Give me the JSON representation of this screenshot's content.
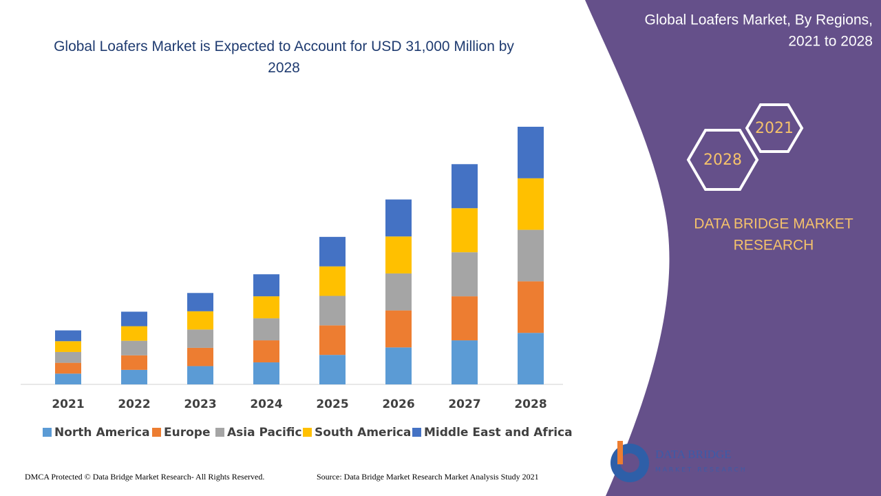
{
  "chart_data": {
    "type": "stacked-bar",
    "title": "Global Loafers Market is Expected to Account for USD 31,000 Million by 2028",
    "categories": [
      "2021",
      "2022",
      "2023",
      "2024",
      "2025",
      "2026",
      "2027",
      "2028"
    ],
    "series": [
      {
        "name": "North America",
        "color": "#5b9bd5",
        "values": [
          1300,
          1750,
          2200,
          2650,
          3550,
          4450,
          5300,
          6200
        ]
      },
      {
        "name": "Europe",
        "color": "#ed7d31",
        "values": [
          1300,
          1750,
          2200,
          2650,
          3550,
          4450,
          5300,
          6200
        ]
      },
      {
        "name": "Asia Pacific",
        "color": "#a5a5a5",
        "values": [
          1300,
          1750,
          2200,
          2650,
          3550,
          4450,
          5300,
          6200
        ]
      },
      {
        "name": "South America",
        "color": "#ffc000",
        "values": [
          1300,
          1750,
          2200,
          2650,
          3550,
          4450,
          5300,
          6200
        ]
      },
      {
        "name": "Middle East and Africa",
        "color": "#4472c4",
        "values": [
          1300,
          1750,
          2200,
          2650,
          3550,
          4450,
          5300,
          6200
        ]
      }
    ]
  },
  "panel": {
    "title_lines": [
      "Global Loafers Market, By Regions,",
      "2021 to 2028"
    ],
    "hex": [
      "2021",
      "2028"
    ],
    "brand_lines": [
      "DATA BRIDGE MARKET",
      "RESEARCH"
    ]
  },
  "logo": {
    "name": "DATA BRIDGE",
    "sub": "MARKET RESEARCH"
  },
  "footer": {
    "left": "DMCA Protected © Data Bridge Market Research- All Rights Reserved.",
    "right": "Source: Data Bridge Market Research Market Analysis Study 2021"
  }
}
